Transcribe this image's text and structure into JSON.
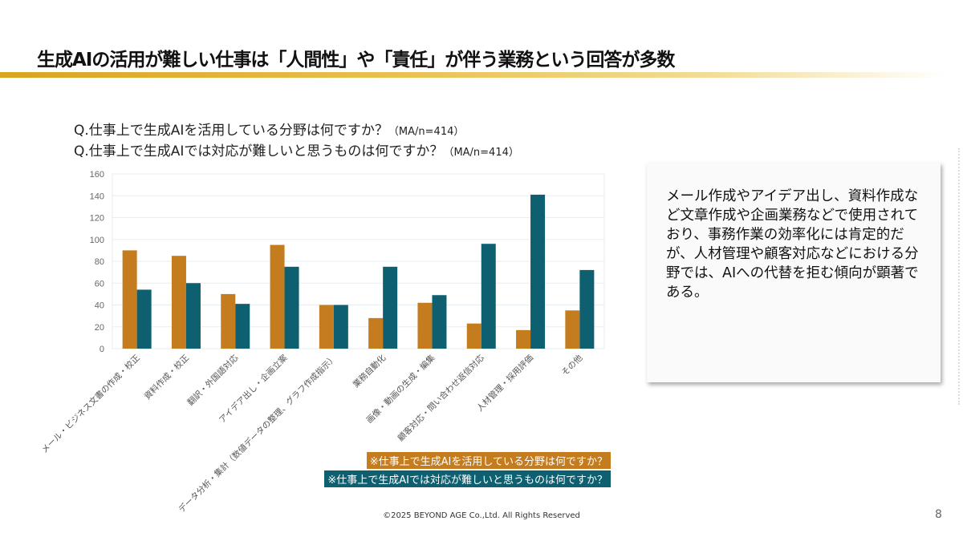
{
  "title": "生成AIの活用が難しい仕事は「人間性」や「責任」が伴う業務という回答が多数",
  "questions": [
    {
      "text": "Q.仕事上で生成AIを活用している分野は何ですか？",
      "note": "（MA/n=414）"
    },
    {
      "text": "Q.仕事上で生成AIでは対応が難しいと思うものは何ですか？",
      "note": "（MA/n=414）"
    }
  ],
  "chart_data": {
    "type": "bar",
    "categories": [
      "メール・ビジネス文書の作成・校正",
      "資料作成・校正",
      "翻訳・外国語対応",
      "アイデア出し・企画立案",
      "データ分析・集計（数値データの整理、グラフ作成指示）",
      "業務自動化",
      "画像・動画の生成・編集",
      "顧客対応・問い合わせ返信対応",
      "人材管理・採用評価",
      "その他"
    ],
    "series": [
      {
        "name": "※仕事上で生成AIを活用している分野は何ですか？",
        "color": "#c57c1e",
        "values": [
          90,
          85,
          50,
          95,
          40,
          28,
          42,
          23,
          17,
          35
        ]
      },
      {
        "name": "※仕事上で生成AIでは対応が難しいと思うものは何ですか？",
        "color": "#0e6070",
        "values": [
          54,
          60,
          41,
          75,
          40,
          75,
          49,
          96,
          141,
          72
        ]
      }
    ],
    "ylim": [
      0,
      160
    ],
    "yticks": [
      "0",
      "20",
      "40",
      "60",
      "80",
      "100",
      "120",
      "140",
      "160"
    ],
    "grid": true,
    "legend": "bottom-right"
  },
  "note": "メール作成やアイデア出し、資料作成など文章作成や企画業務などで使用されており、事務作業の効率化には肯定的だが、人材管理や顧客対応などにおける分野では、AIへの代替を拒む傾向が顕著である。",
  "footer": "©2025 BEYOND AGE Co.,Ltd. All Rights Reserved",
  "page_number": "8"
}
